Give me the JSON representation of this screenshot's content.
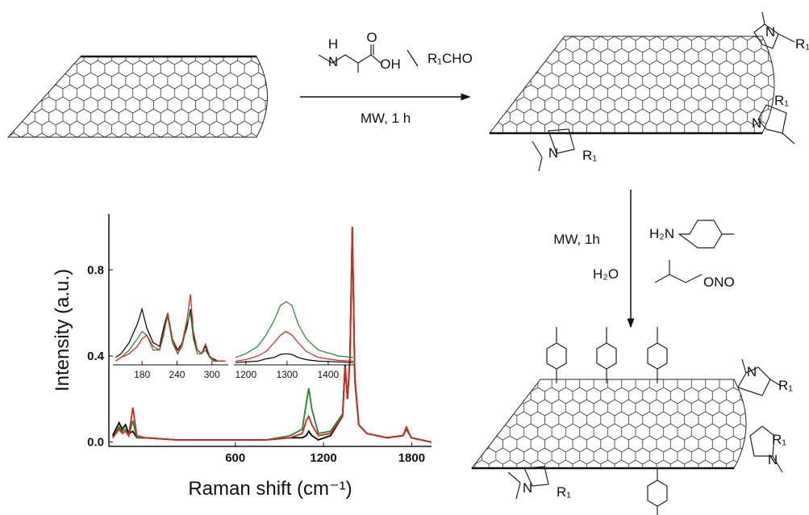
{
  "scheme": {
    "step1": {
      "labels": [
        "H",
        "N",
        "O",
        "OH",
        "R₁CHO"
      ],
      "conditions": "MW, 1 h"
    },
    "product1": {
      "labels": [
        "N",
        "R₁",
        "R₁",
        "N",
        "N",
        "R₁"
      ]
    },
    "step2": {
      "conditions": "MW, 1h",
      "labels": [
        "H₂N",
        "H₂O",
        "ONO"
      ]
    },
    "product2": {
      "labels": [
        "N",
        "R₁",
        "R₁",
        "N",
        "N",
        "R₁"
      ]
    }
  },
  "chart_data": [
    {
      "type": "line",
      "x_label": "Raman shift (cm⁻¹)",
      "y_label": "Intensity (a.u.)",
      "xlim": [
        -260,
        1935
      ],
      "ylim": [
        -0.02,
        1.06
      ],
      "xticks": [
        600,
        1200,
        1800
      ],
      "yticks": [
        {
          "value": 0,
          "label": "0.0"
        },
        {
          "value": 0.4,
          "label": "0.4"
        },
        {
          "value": 0.8,
          "label": "0.8"
        }
      ],
      "x": [
        -234,
        -191,
        -169,
        -147,
        -125,
        -97,
        -70,
        -15,
        205,
        589,
        809,
        973,
        1056,
        1083,
        1100,
        1122,
        1165,
        1248,
        1330,
        1347,
        1363,
        1380,
        1396,
        1413,
        1440,
        1495,
        1632,
        1742,
        1764,
        1797,
        1934
      ],
      "series": [
        {
          "color": "#000000",
          "values": [
            0.03,
            0.09,
            0.06,
            0.08,
            0.04,
            0.05,
            0.02,
            0.02,
            0.01,
            0.01,
            0.01,
            0.02,
            0.02,
            0.03,
            0.05,
            0.03,
            0.01,
            0.03,
            0.12,
            0.36,
            0.2,
            0.4,
            1.0,
            0.3,
            0.08,
            0.04,
            0.02,
            0.03,
            0.06,
            0.02,
            0.0
          ]
        },
        {
          "color": "#1a8a2a",
          "values": [
            0.02,
            0.07,
            0.05,
            0.06,
            0.03,
            0.1,
            0.02,
            0.02,
            0.01,
            0.01,
            0.01,
            0.03,
            0.06,
            0.18,
            0.25,
            0.15,
            0.04,
            0.05,
            0.13,
            0.34,
            0.2,
            0.38,
            0.98,
            0.28,
            0.08,
            0.04,
            0.02,
            0.03,
            0.06,
            0.02,
            0.0
          ]
        },
        {
          "color": "#e0201a",
          "values": [
            0.02,
            0.06,
            0.04,
            0.05,
            0.03,
            0.16,
            0.03,
            0.02,
            0.01,
            0.01,
            0.01,
            0.02,
            0.04,
            0.1,
            0.12,
            0.08,
            0.03,
            0.04,
            0.12,
            0.35,
            0.2,
            0.39,
            1.0,
            0.3,
            0.08,
            0.04,
            0.02,
            0.03,
            0.07,
            0.02,
            0.0
          ]
        }
      ]
    },
    {
      "type": "line",
      "xlim": [
        130,
        328
      ],
      "ylim": [
        0,
        1
      ],
      "xticks": [
        180,
        240,
        300
      ],
      "x": [
        134.5,
        144,
        158,
        172,
        180,
        188,
        199,
        210,
        217,
        224,
        232,
        241,
        249,
        257,
        263,
        268,
        275,
        282,
        289,
        296,
        303,
        310,
        323
      ],
      "series": [
        {
          "color": "#000000",
          "values": [
            0.1,
            0.15,
            0.3,
            0.55,
            0.75,
            0.5,
            0.3,
            0.25,
            0.5,
            0.7,
            0.35,
            0.2,
            0.3,
            0.5,
            0.75,
            0.4,
            0.2,
            0.15,
            0.25,
            0.1,
            0.08,
            0.05,
            0.05
          ]
        },
        {
          "color": "#1a8a2a",
          "values": [
            0.05,
            0.1,
            0.2,
            0.35,
            0.45,
            0.4,
            0.2,
            0.2,
            0.45,
            0.65,
            0.3,
            0.15,
            0.25,
            0.55,
            0.7,
            0.35,
            0.15,
            0.15,
            0.2,
            0.1,
            0.05,
            0.05,
            0.05
          ]
        },
        {
          "color": "#e0201a",
          "values": [
            0.05,
            0.1,
            0.15,
            0.25,
            0.35,
            0.4,
            0.25,
            0.2,
            0.4,
            0.7,
            0.35,
            0.15,
            0.3,
            0.6,
            0.95,
            0.45,
            0.2,
            0.15,
            0.28,
            0.12,
            0.06,
            0.05,
            0.05
          ]
        }
      ]
    },
    {
      "type": "line",
      "xlim": [
        1171,
        1465
      ],
      "ylim": [
        0,
        1
      ],
      "xticks": [
        1200,
        1300,
        1400
      ],
      "x": [
        1175,
        1200,
        1229,
        1249,
        1269,
        1284,
        1298,
        1312,
        1327,
        1347,
        1376,
        1425,
        1461
      ],
      "series": [
        {
          "color": "#000000",
          "values": [
            0.03,
            0.04,
            0.05,
            0.08,
            0.1,
            0.14,
            0.15,
            0.14,
            0.1,
            0.07,
            0.05,
            0.04,
            0.03
          ]
        },
        {
          "color": "#1a8a2a",
          "values": [
            0.1,
            0.15,
            0.25,
            0.4,
            0.6,
            0.8,
            0.85,
            0.8,
            0.55,
            0.35,
            0.2,
            0.12,
            0.1
          ]
        },
        {
          "color": "#e0201a",
          "values": [
            0.05,
            0.07,
            0.12,
            0.18,
            0.3,
            0.4,
            0.45,
            0.4,
            0.3,
            0.18,
            0.1,
            0.06,
            0.05
          ]
        }
      ]
    }
  ]
}
